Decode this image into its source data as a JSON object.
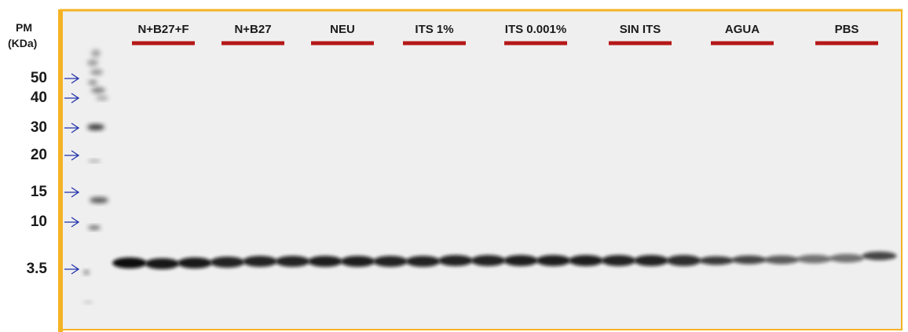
{
  "header": {
    "title": "PM",
    "unit": "(KDa)"
  },
  "markers": [
    "50",
    "40",
    "30",
    "20",
    "15",
    "10",
    "3.5"
  ],
  "lanes": [
    "N+B27+F",
    "N+B27",
    "NEU",
    "ITS 1%",
    "ITS 0.001%",
    "SIN ITS",
    "AGUA",
    "PBS"
  ]
}
